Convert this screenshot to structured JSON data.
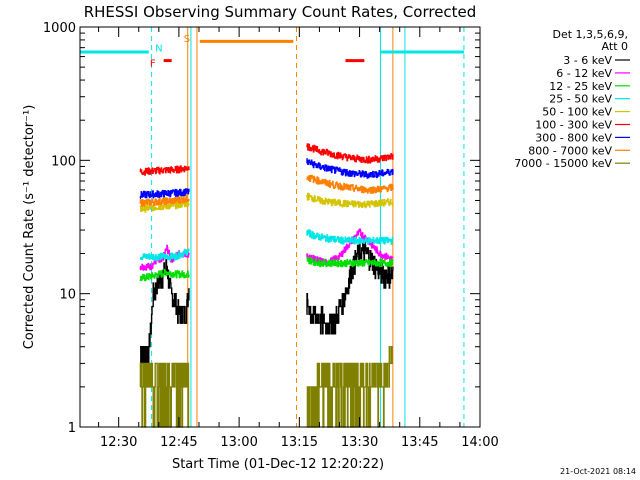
{
  "chart_data": {
    "type": "line",
    "title": "RHESSI Observing Summary Count Rates, Corrected",
    "xlabel": "Start Time (01-Dec-12 12:20:22)",
    "ylabel": "Corrected Count Rate (s⁻¹ detector⁻¹)",
    "yscale": "log",
    "ylim": [
      1,
      1000
    ],
    "xlim": [
      "12:20:22",
      "14:00:00"
    ],
    "x_tick_labels": [
      "12:30",
      "12:45",
      "13:00",
      "13:15",
      "13:30",
      "13:45",
      "14:00"
    ],
    "x_tick_values": [
      30,
      45,
      60,
      75,
      90,
      105,
      120
    ],
    "y_tick_labels": [
      "1",
      "10",
      "100",
      "1000"
    ],
    "y_tick_values": [
      1,
      10,
      100,
      1000
    ],
    "legend_header_line1": "Det 1,3,5,6,9,",
    "legend_header_line2": "Att 0",
    "footer_timestamp": "21-Oct-2021 08:14",
    "series": [
      {
        "name": "3 - 6 keV",
        "color": "#000000"
      },
      {
        "name": "6 - 12 keV",
        "color": "#ff00ff"
      },
      {
        "name": "12 - 25 keV",
        "color": "#00dd00"
      },
      {
        "name": "25 - 50 keV",
        "color": "#00e5e5"
      },
      {
        "name": "50 - 100 keV",
        "color": "#d4c400"
      },
      {
        "name": "100 - 300 keV",
        "color": "#ff0000"
      },
      {
        "name": "300 - 800 keV",
        "color": "#0000ff"
      },
      {
        "name": "800 - 7000 keV",
        "color": "#ff8000"
      },
      {
        "name": "7000 - 15000 keV",
        "color": "#808000"
      }
    ],
    "segments": [
      {
        "start": 35.3,
        "end": 47.5,
        "levels": [
          {
            "series": 0,
            "points": [
              [
                35.3,
                3.8
              ],
              [
                37.5,
                3.8
              ],
              [
                38.5,
                9.5
              ],
              [
                39.5,
                12
              ],
              [
                41,
                14
              ],
              [
                42,
                16
              ],
              [
                43,
                10
              ],
              [
                44,
                9
              ],
              [
                45,
                7
              ],
              [
                46,
                7
              ],
              [
                47,
                8
              ],
              [
                47.5,
                12
              ]
            ]
          },
          {
            "series": 1,
            "points": [
              [
                35.3,
                16
              ],
              [
                38,
                16
              ],
              [
                39.5,
                18
              ],
              [
                40.5,
                17
              ],
              [
                42,
                22
              ],
              [
                43,
                18
              ],
              [
                45,
                20
              ],
              [
                47.5,
                20
              ]
            ]
          },
          {
            "series": 2,
            "points": [
              [
                35.3,
                13
              ],
              [
                38,
                13.5
              ],
              [
                40,
                14
              ],
              [
                42,
                14.5
              ],
              [
                44,
                14
              ],
              [
                47.5,
                14
              ]
            ]
          },
          {
            "series": 3,
            "points": [
              [
                35.3,
                19
              ],
              [
                38,
                19
              ],
              [
                41,
                19
              ],
              [
                44,
                19
              ],
              [
                47.5,
                21
              ]
            ]
          },
          {
            "series": 4,
            "points": [
              [
                35.3,
                43
              ],
              [
                40,
                45
              ],
              [
                44,
                46
              ],
              [
                47.5,
                48
              ]
            ]
          },
          {
            "series": 5,
            "points": [
              [
                35.3,
                82
              ],
              [
                40,
                84
              ],
              [
                44,
                85
              ],
              [
                47.5,
                88
              ]
            ]
          },
          {
            "series": 6,
            "points": [
              [
                35.3,
                55
              ],
              [
                40,
                56
              ],
              [
                44,
                57
              ],
              [
                47.5,
                58
              ]
            ]
          },
          {
            "series": 7,
            "points": [
              [
                35.3,
                48
              ],
              [
                40,
                49
              ],
              [
                44,
                50
              ],
              [
                47.5,
                52
              ]
            ]
          },
          {
            "series": 8,
            "points": [
              [
                35.3,
                2.5
              ],
              [
                38,
                2.5
              ],
              [
                41,
                2.6
              ],
              [
                44,
                2.5
              ],
              [
                47.5,
                3
              ]
            ]
          }
        ]
      },
      {
        "start": 76.8,
        "end": 98.3,
        "levels": [
          {
            "series": 0,
            "points": [
              [
                76.8,
                8.5
              ],
              [
                78,
                7
              ],
              [
                80,
                6.5
              ],
              [
                82,
                6
              ],
              [
                84,
                6.5
              ],
              [
                86,
                9
              ],
              [
                88,
                15
              ],
              [
                90,
                21
              ],
              [
                92,
                20
              ],
              [
                94,
                16
              ],
              [
                96,
                14
              ],
              [
                97.5,
                14
              ]
            ]
          },
          {
            "series": 1,
            "points": [
              [
                76.8,
                19
              ],
              [
                79,
                18
              ],
              [
                82,
                17
              ],
              [
                85,
                19
              ],
              [
                88,
                25
              ],
              [
                90,
                29
              ],
              [
                92,
                25
              ],
              [
                95,
                20
              ],
              [
                98.3,
                18
              ]
            ]
          },
          {
            "series": 2,
            "points": [
              [
                76.8,
                18
              ],
              [
                80,
                17
              ],
              [
                85,
                17
              ],
              [
                90,
                17
              ],
              [
                95,
                17
              ],
              [
                98.3,
                17
              ]
            ]
          },
          {
            "series": 3,
            "points": [
              [
                76.8,
                29
              ],
              [
                79,
                27
              ],
              [
                82,
                26
              ],
              [
                86,
                25
              ],
              [
                90,
                25
              ],
              [
                94,
                25
              ],
              [
                98.3,
                25
              ]
            ]
          },
          {
            "series": 4,
            "points": [
              [
                76.8,
                54
              ],
              [
                80,
                50
              ],
              [
                84,
                48
              ],
              [
                88,
                47
              ],
              [
                92,
                47
              ],
              [
                96,
                48
              ],
              [
                98.3,
                49
              ]
            ]
          },
          {
            "series": 5,
            "points": [
              [
                76.8,
                128
              ],
              [
                80,
                118
              ],
              [
                84,
                110
              ],
              [
                88,
                104
              ],
              [
                92,
                101
              ],
              [
                96,
                104
              ],
              [
                98.3,
                108
              ]
            ]
          },
          {
            "series": 6,
            "points": [
              [
                76.8,
                98
              ],
              [
                80,
                90
              ],
              [
                84,
                84
              ],
              [
                88,
                80
              ],
              [
                92,
                78
              ],
              [
                96,
                80
              ],
              [
                98.3,
                83
              ]
            ]
          },
          {
            "series": 7,
            "points": [
              [
                76.8,
                75
              ],
              [
                80,
                70
              ],
              [
                84,
                65
              ],
              [
                88,
                62
              ],
              [
                92,
                60
              ],
              [
                96,
                61
              ],
              [
                98.3,
                63
              ]
            ]
          },
          {
            "series": 8,
            "points": [
              [
                76.8,
                2.2
              ],
              [
                82,
                2.4
              ],
              [
                88,
                2.5
              ],
              [
                92,
                2.5
              ],
              [
                96,
                2.6
              ],
              [
                98.3,
                3.5
              ]
            ]
          }
        ]
      }
    ],
    "flags": {
      "lines": [
        {
          "color": "#00e5e5",
          "style": "dashed",
          "x": 38.2
        },
        {
          "color": "#00e5e5",
          "style": "solid",
          "x": 48
        },
        {
          "color": "#00e5e5",
          "style": "solid",
          "x": 95.2
        },
        {
          "color": "#00e5e5",
          "style": "solid",
          "x": 101.3
        },
        {
          "color": "#00e5e5",
          "style": "dashed",
          "x": 116
        },
        {
          "color": "#ff8000",
          "style": "solid",
          "x": 47.2
        },
        {
          "color": "#ff8000",
          "style": "solid",
          "x": 49.5
        },
        {
          "color": "#ff8000",
          "style": "dashed",
          "x": 74.3
        },
        {
          "color": "#ff8000",
          "style": "solid",
          "x": 98.3
        }
      ],
      "bars": [
        {
          "color": "#00e5e5",
          "from": 20.4,
          "to": 37.5,
          "level": 650
        },
        {
          "color": "#00e5e5",
          "from": 95.2,
          "to": 116,
          "level": 650
        },
        {
          "color": "#ff8000",
          "from": 50.2,
          "to": 73.5,
          "level": 780
        },
        {
          "color": "#ff0000",
          "from": 41.2,
          "to": 43.2,
          "level": 560
        },
        {
          "color": "#ff0000",
          "from": 86.5,
          "to": 91.2,
          "level": 560
        }
      ],
      "letters": [
        {
          "text": "N",
          "color": "#00e5e5",
          "x": 40,
          "level": 700
        },
        {
          "text": "F",
          "color": "#ff0000",
          "x": 38.5,
          "level": 540
        },
        {
          "text": "S",
          "color": "#ff8000",
          "x": 47,
          "level": 830
        }
      ]
    }
  }
}
